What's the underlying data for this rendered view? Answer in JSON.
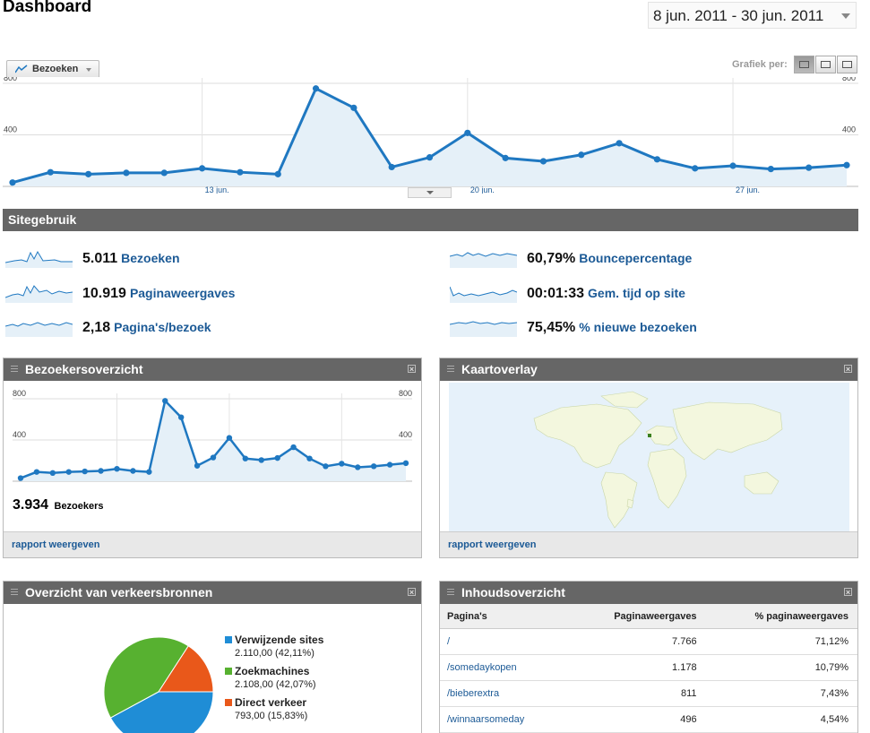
{
  "header": {
    "title": "Dashboard",
    "date_range": "8 jun. 2011 - 30 jun. 2011"
  },
  "graph_controls": {
    "metric_tab": "Bezoeken",
    "grafiek_per_label": "Grafiek per:"
  },
  "colors": {
    "accent": "#1f78c1",
    "fill": "#e5f0f8",
    "header_bar": "#666666",
    "link": "#1c5a96",
    "pie_referring": "#1f8dd6",
    "pie_search": "#57b130",
    "pie_direct": "#e9581a"
  },
  "main_chart": {
    "type": "line",
    "y_ticks": [
      "800",
      "400"
    ],
    "x_labels": [
      "13 jun.",
      "20 jun.",
      "27 jun."
    ],
    "ylim": [
      0,
      800
    ],
    "chart_data": {
      "type": "line",
      "x": [
        "8 jun",
        "9 jun",
        "10 jun",
        "11 jun",
        "12 jun",
        "13 jun",
        "14 jun",
        "15 jun",
        "16 jun",
        "17 jun",
        "18 jun",
        "19 jun",
        "20 jun",
        "21 jun",
        "22 jun",
        "23 jun",
        "24 jun",
        "25 jun",
        "26 jun",
        "27 jun",
        "28 jun",
        "29 jun",
        "30 jun"
      ],
      "values": [
        30,
        110,
        95,
        105,
        105,
        140,
        110,
        95,
        760,
        610,
        150,
        225,
        415,
        220,
        195,
        245,
        335,
        210,
        140,
        160,
        135,
        145,
        165
      ],
      "ylim": [
        0,
        800
      ]
    }
  },
  "site_usage": {
    "title": "Sitegebruik",
    "metrics": [
      {
        "value": "5.011",
        "label": "Bezoeken"
      },
      {
        "value": "10.919",
        "label": "Paginaweergaves"
      },
      {
        "value": "2,18",
        "label": "Pagina's/bezoek"
      },
      {
        "value": "60,79%",
        "label": "Bouncepercentage"
      },
      {
        "value": "00:01:33",
        "label": "Gem. tijd op site"
      },
      {
        "value": "75,45%",
        "label": "% nieuwe bezoeken"
      }
    ]
  },
  "visitors_widget": {
    "title": "Bezoekersoverzicht",
    "y_ticks": [
      "800",
      "400"
    ],
    "total_value": "3.934",
    "total_label": "Bezoekers",
    "footer_link": "rapport weergeven",
    "chart_data": {
      "type": "line",
      "values": [
        30,
        90,
        80,
        90,
        95,
        100,
        120,
        100,
        90,
        780,
        620,
        150,
        230,
        420,
        220,
        205,
        225,
        330,
        220,
        145,
        170,
        135,
        145,
        160,
        175
      ],
      "ylim": [
        0,
        800
      ]
    }
  },
  "map_widget": {
    "title": "Kaartoverlay",
    "footer_link": "rapport weergeven"
  },
  "traffic_widget": {
    "title": "Overzicht van verkeersbronnen",
    "chart_data": {
      "type": "pie",
      "slices": [
        {
          "name": "Verwijzende sites",
          "value": 2110.0,
          "label": "2.110,00 (42,11%)"
        },
        {
          "name": "Zoekmachines",
          "value": 2108.0,
          "label": "2.108,00 (42,07%)"
        },
        {
          "name": "Direct verkeer",
          "value": 793.0,
          "label": "793,00 (15,83%)"
        }
      ]
    }
  },
  "content_widget": {
    "title": "Inhoudsoverzicht",
    "columns": [
      "Pagina's",
      "Paginaweergaves",
      "% paginaweergaves"
    ],
    "rows": [
      [
        "/",
        "7.766",
        "71,12%"
      ],
      [
        "/somedaykopen",
        "1.178",
        "10,79%"
      ],
      [
        "/bieberextra",
        "811",
        "7,43%"
      ],
      [
        "/winnaarsomeday",
        "496",
        "4,54%"
      ]
    ]
  }
}
